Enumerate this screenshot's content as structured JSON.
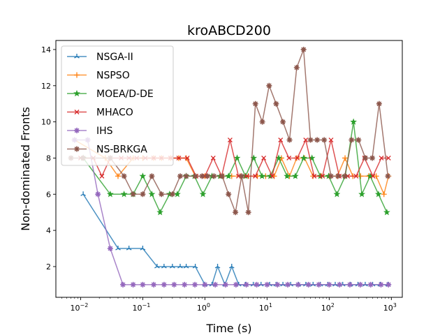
{
  "chart_data": {
    "type": "line",
    "title": "kroABCD200",
    "xlabel": "Time (s)",
    "ylabel": "Non-dominated Fronts",
    "xscale": "log",
    "xlim": [
      0.004,
      1500
    ],
    "ylim": [
      0.3,
      14.5
    ],
    "grid": false,
    "legend_position": "top-left",
    "x_ticks": [
      {
        "value": 0.01,
        "base": "10",
        "exp": "−2"
      },
      {
        "value": 0.1,
        "base": "10",
        "exp": "−1"
      },
      {
        "value": 1,
        "base": "10",
        "exp": "0"
      },
      {
        "value": 10,
        "base": "10",
        "exp": "1"
      },
      {
        "value": 100,
        "base": "10",
        "exp": "2"
      },
      {
        "value": 1000,
        "base": "10",
        "exp": "3"
      }
    ],
    "y_ticks": [
      "2",
      "4",
      "6",
      "8",
      "10",
      "12",
      "14"
    ],
    "series": [
      {
        "name": "NSGA-II",
        "color": "#1f77b4",
        "marker": "tri",
        "x": [
          0.011,
          0.04,
          0.06,
          0.1,
          0.17,
          0.22,
          0.3,
          0.4,
          0.5,
          0.7,
          1.0,
          1.3,
          1.6,
          2.1,
          2.7,
          3.5,
          4.5,
          6,
          8,
          11,
          14,
          18,
          24,
          32,
          42,
          55,
          72,
          95,
          125,
          165,
          220,
          290,
          380,
          500,
          660,
          880
        ],
        "y": [
          6,
          3,
          3,
          3,
          2,
          2,
          2,
          2,
          2,
          2,
          1,
          1,
          2,
          1,
          2,
          1,
          1,
          1,
          1,
          1,
          1,
          1,
          1,
          1,
          1,
          1,
          1,
          1,
          1,
          1,
          1,
          1,
          1,
          1,
          1,
          1
        ]
      },
      {
        "name": "NSPSO",
        "color": "#ff7f0e",
        "marker": "plus",
        "x": [
          0.008,
          0.025,
          0.04,
          0.07,
          0.1,
          0.15,
          0.2,
          0.28,
          0.38,
          0.5,
          0.7,
          1.0,
          1.4,
          2,
          2.7,
          3.7,
          5,
          7,
          9.5,
          13,
          17,
          23,
          30,
          40,
          55,
          75,
          100,
          135,
          180,
          240,
          320,
          430,
          570,
          760,
          900
        ],
        "y": [
          9,
          8,
          7,
          8,
          8,
          8,
          8,
          8,
          8,
          8,
          7,
          7,
          7,
          7,
          7,
          7,
          7,
          7,
          7,
          7,
          8,
          7,
          8,
          8,
          7,
          7,
          7,
          7,
          8,
          7,
          7,
          7,
          7,
          6,
          7
        ]
      },
      {
        "name": "MOEA/D-DE",
        "color": "#2ca02c",
        "marker": "star",
        "x": [
          0.011,
          0.03,
          0.05,
          0.07,
          0.1,
          0.14,
          0.19,
          0.27,
          0.36,
          0.5,
          0.68,
          0.93,
          1.3,
          1.75,
          2.4,
          3.3,
          4.5,
          6.1,
          8.3,
          11.3,
          15.4,
          21,
          28.5,
          38.8,
          52.8,
          72,
          98,
          133,
          181,
          246,
          335,
          456,
          620,
          845
        ],
        "y": [
          8,
          6,
          6,
          6,
          7,
          6,
          5,
          6,
          6,
          7,
          7,
          6,
          7,
          7,
          7,
          8,
          7,
          8,
          7,
          7,
          8,
          7,
          7,
          8,
          8,
          7,
          7,
          6,
          7,
          10,
          6,
          7,
          6,
          5
        ]
      },
      {
        "name": "MHACO",
        "color": "#d62728",
        "marker": "x",
        "x": [
          0.01,
          0.016,
          0.022,
          0.03,
          0.045,
          0.06,
          0.08,
          0.11,
          0.15,
          0.2,
          0.28,
          0.38,
          0.52,
          0.72,
          1.0,
          1.36,
          1.86,
          2.54,
          3.47,
          4.74,
          6.47,
          8.84,
          12.1,
          16.5,
          22.5,
          30.7,
          41.9,
          57.2,
          78,
          107,
          145,
          198,
          271,
          370,
          505,
          690,
          900
        ],
        "y": [
          8,
          8,
          7,
          8,
          8,
          8,
          8,
          8,
          8,
          8,
          8,
          8,
          8,
          7,
          7,
          8,
          7,
          9,
          7,
          7,
          7,
          8,
          7,
          9,
          8,
          8,
          9,
          7,
          7,
          9,
          7,
          7,
          7,
          8,
          7,
          8,
          8
        ]
      },
      {
        "name": "IHS",
        "color": "#9467bd",
        "marker": "star8",
        "x": [
          0.008,
          0.013,
          0.019,
          0.03,
          0.048,
          0.07,
          0.1,
          0.15,
          0.22,
          0.32,
          0.47,
          0.69,
          1.0,
          1.47,
          2.15,
          3.16,
          4.64,
          6.81,
          10,
          14.7,
          21.5,
          31.6,
          46.4,
          68.1,
          100,
          147,
          215,
          316,
          464,
          681,
          900
        ],
        "y": [
          9,
          9,
          6,
          3,
          1,
          1,
          1,
          1,
          1,
          1,
          1,
          1,
          1,
          1,
          1,
          1,
          1,
          1,
          1,
          1,
          1,
          1,
          1,
          1,
          1,
          1,
          1,
          1,
          1,
          1,
          1
        ]
      },
      {
        "name": "NS-BRKGA",
        "color": "#8c564b",
        "marker": "star8",
        "x": [
          0.007,
          0.011,
          0.03,
          0.05,
          0.07,
          0.1,
          0.14,
          0.2,
          0.3,
          0.4,
          0.5,
          0.7,
          0.9,
          1.1,
          1.4,
          1.9,
          2.4,
          3.1,
          3.9,
          5,
          6.5,
          8.4,
          10.8,
          14,
          18,
          23,
          30,
          38.7,
          50,
          64,
          83,
          107,
          138,
          178,
          229,
          296,
          382,
          493,
          636,
          880
        ],
        "y": [
          8,
          8,
          8,
          7,
          6,
          6,
          7,
          6,
          6,
          7,
          7,
          7,
          7,
          7,
          7,
          7,
          6,
          5,
          7,
          5,
          11,
          10,
          12,
          11,
          10,
          9,
          13,
          14,
          9,
          9,
          9,
          7,
          7,
          7,
          9,
          9,
          8,
          8,
          11,
          7
        ]
      }
    ]
  }
}
